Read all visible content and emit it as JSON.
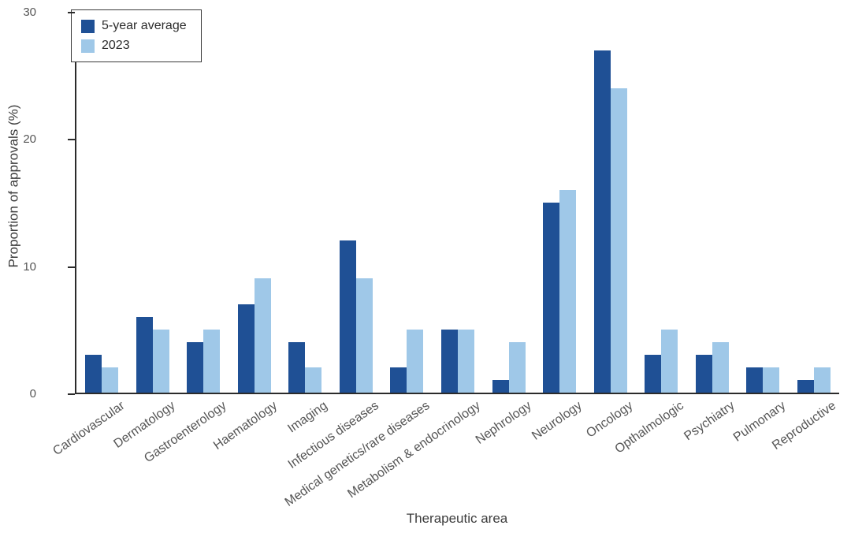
{
  "chart_data": {
    "type": "bar",
    "title": "",
    "xlabel": "Therapeutic area",
    "ylabel": "Proportion of approvals (%)",
    "ylim": [
      0,
      30
    ],
    "yticks": [
      0,
      10,
      20,
      30
    ],
    "grid": false,
    "legend_position": "top-left",
    "categories": [
      "Cardiovascular",
      "Dermatology",
      "Gastroenterology",
      "Haematology",
      "Imaging",
      "Infectious diseases",
      "Medical genetics/rare diseases",
      "Metabolism & endocrinology",
      "Nephrology",
      "Neurology",
      "Oncology",
      "Opthalmologic",
      "Psychiatry",
      "Pulmonary",
      "Reproductive"
    ],
    "series": [
      {
        "name": "5-year average",
        "color": "#1f5095",
        "values": [
          3,
          6,
          4,
          7,
          4,
          12,
          2,
          5,
          1,
          15,
          27,
          3,
          3,
          2,
          1
        ]
      },
      {
        "name": "2023",
        "color": "#9fc8e8",
        "values": [
          2,
          5,
          5,
          9,
          2,
          9,
          5,
          5,
          4,
          16,
          24,
          5,
          4,
          2,
          2
        ]
      }
    ]
  }
}
